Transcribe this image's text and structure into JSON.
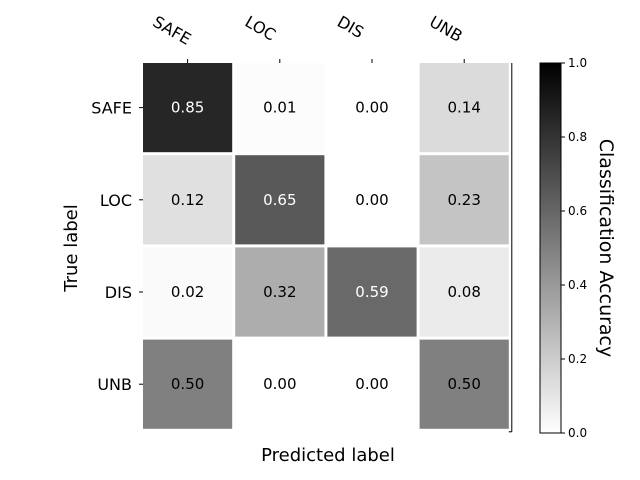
{
  "chart_data": {
    "type": "heatmap",
    "xlabel": "Predicted label",
    "ylabel": "True label",
    "x_categories": [
      "SAFE",
      "LOC",
      "DIS",
      "UNB"
    ],
    "y_categories": [
      "SAFE",
      "LOC",
      "DIS",
      "UNB"
    ],
    "matrix": [
      [
        0.85,
        0.01,
        0.0,
        0.14
      ],
      [
        0.12,
        0.65,
        0.0,
        0.23
      ],
      [
        0.02,
        0.32,
        0.59,
        0.08
      ],
      [
        0.5,
        0.0,
        0.0,
        0.5
      ]
    ],
    "colorbar": {
      "label": "Classification Accuracy",
      "range": [
        0.0,
        1.0
      ],
      "ticks": [
        0.0,
        0.2,
        0.4,
        0.6,
        0.8,
        1.0
      ],
      "tick_labels": [
        "0.0",
        "0.2",
        "0.4",
        "0.6",
        "0.8",
        "1.0"
      ]
    },
    "colormap": {
      "low": "#ffffff",
      "high": "#000000"
    }
  }
}
